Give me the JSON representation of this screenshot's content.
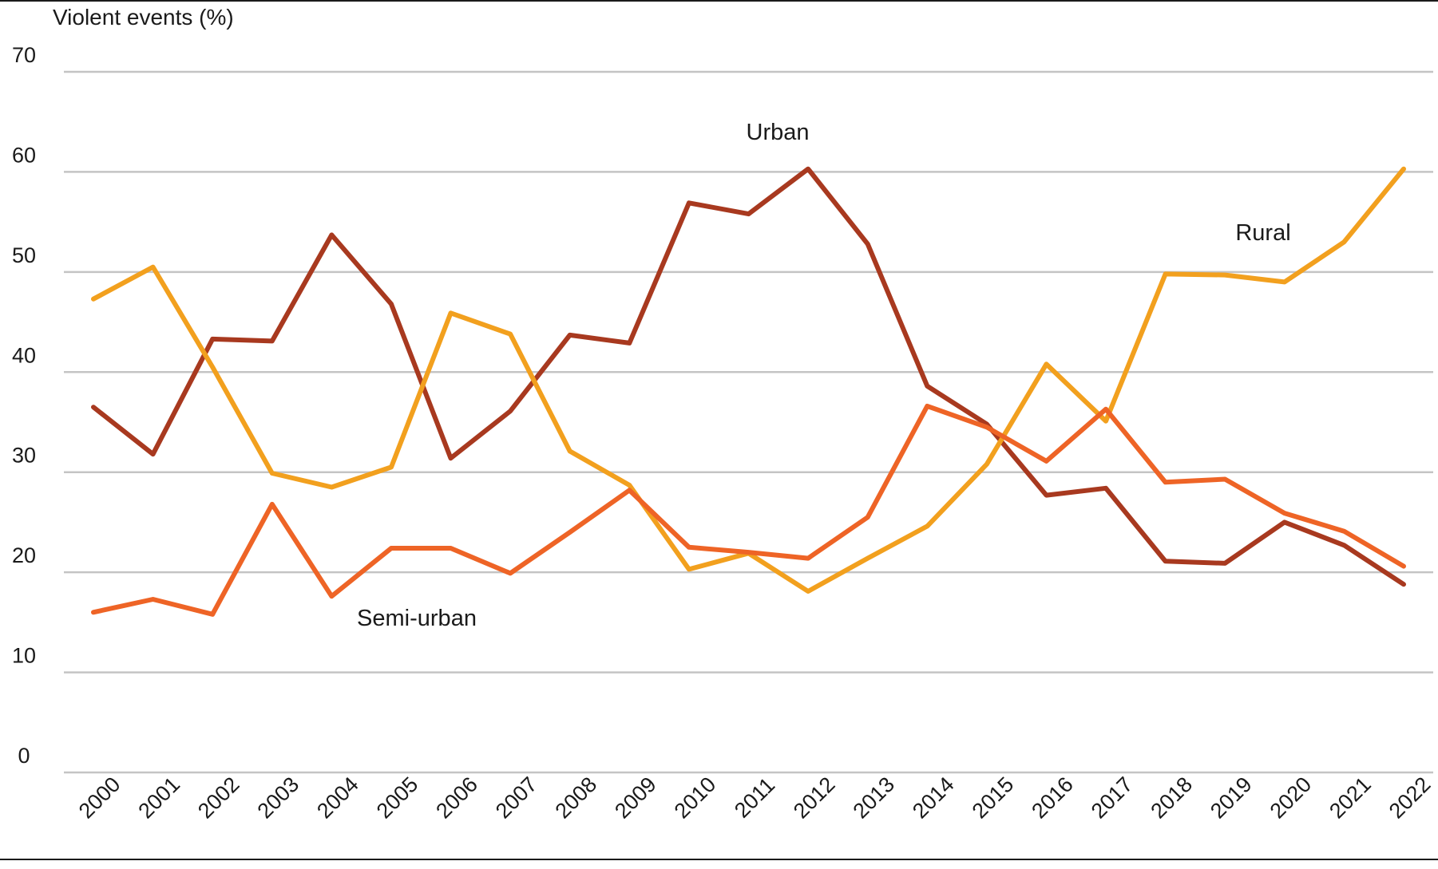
{
  "chart_data": {
    "type": "line",
    "title": "",
    "ylabel": "Violent events (%)",
    "xlabel": "",
    "ylim": [
      0,
      70
    ],
    "yticks": [
      0,
      10,
      20,
      30,
      40,
      50,
      60,
      70
    ],
    "grid": true,
    "legend": "inline labels",
    "x": [
      "2000",
      "2001",
      "2002",
      "2003",
      "2004",
      "2005",
      "2006",
      "2007",
      "2008",
      "2009",
      "2010",
      "2011",
      "2012",
      "2013",
      "2014",
      "2015",
      "2016",
      "2017",
      "2018",
      "2019",
      "2020",
      "2021",
      "2022"
    ],
    "series": [
      {
        "name": "Urban",
        "color": "#A8391F",
        "values": [
          36.5,
          31.8,
          43.3,
          43.1,
          53.7,
          46.8,
          31.4,
          36.1,
          43.7,
          42.9,
          56.9,
          55.8,
          60.3,
          52.8,
          38.6,
          34.8,
          27.7,
          28.4,
          21.1,
          20.9,
          25.0,
          22.7,
          18.8
        ]
      },
      {
        "name": "Rural",
        "color": "#F2A01E",
        "values": [
          47.3,
          50.5,
          40.5,
          29.9,
          28.5,
          30.5,
          45.9,
          43.8,
          32.1,
          28.7,
          20.3,
          21.9,
          18.1,
          21.4,
          24.6,
          30.8,
          40.8,
          35.1,
          49.8,
          49.7,
          49.0,
          53.0,
          60.3
        ]
      },
      {
        "name": "Semi-urban",
        "color": "#EE6426",
        "values": [
          16.0,
          17.3,
          15.8,
          26.8,
          17.6,
          22.4,
          22.4,
          19.9,
          24.0,
          28.2,
          22.5,
          22.0,
          21.4,
          25.5,
          36.6,
          34.5,
          31.1,
          36.3,
          29.0,
          29.3,
          25.9,
          24.1,
          20.6
        ]
      }
    ]
  }
}
